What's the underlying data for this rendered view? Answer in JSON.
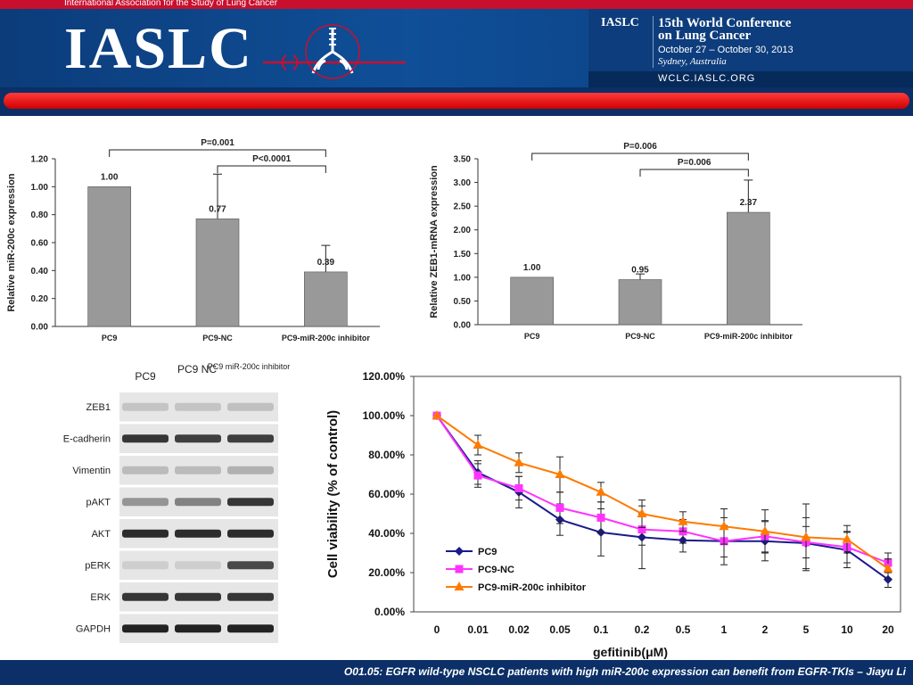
{
  "header": {
    "top_strip": "International Association for the Study of Lung Cancer",
    "logo": "IASLC",
    "conf_org": "IASLC",
    "conf_title_1": "15th World Conference",
    "conf_title_2": "on Lung Cancer",
    "conf_dates": "October 27 – October 30, 2013",
    "conf_location": "Sydney, Australia",
    "conf_url": "WCLC.IASLC.ORG"
  },
  "colors": {
    "bar_fill": "#999999",
    "pc9": "#1a1a8c",
    "pc9_nc": "#ff33ff",
    "inhibitor": "#ff7a00"
  },
  "chart_data": [
    {
      "type": "bar",
      "categories": [
        "PC9",
        "PC9-NC",
        "PC9-miR-200c inhibitor"
      ],
      "values": [
        1.0,
        0.77,
        0.39
      ],
      "value_labels": [
        "1.00",
        "0.77",
        "0.39"
      ],
      "error": [
        0,
        0.32,
        0.19
      ],
      "ylabel": "Relative miR-200c expression",
      "ylim": [
        0,
        1.2
      ],
      "ticks": [
        "0.00",
        "0.20",
        "0.40",
        "0.60",
        "0.80",
        "1.00",
        "1.20"
      ],
      "annotations": [
        {
          "from": 0,
          "to": 2,
          "text": "P=0.001"
        },
        {
          "from": 1,
          "to": 2,
          "text": "P<0.0001"
        }
      ]
    },
    {
      "type": "bar",
      "categories": [
        "PC9",
        "PC9-NC",
        "PC9-miR-200c inhibitor"
      ],
      "values": [
        1.0,
        0.95,
        2.37
      ],
      "value_labels": [
        "1.00",
        "0.95",
        "2.37"
      ],
      "error": [
        0,
        0.12,
        0.68
      ],
      "ylabel": "Relative ZEB1-mRNA expression",
      "ylim": [
        0,
        3.5
      ],
      "ticks": [
        "0.00",
        "0.50",
        "1.00",
        "1.50",
        "2.00",
        "2.50",
        "3.00",
        "3.50"
      ],
      "annotations": [
        {
          "from": 0,
          "to": 2,
          "text": "P=0.006"
        },
        {
          "from": 1,
          "to": 2,
          "text": "P=0.006"
        }
      ]
    },
    {
      "type": "line",
      "x": [
        "0",
        "0.01",
        "0.02",
        "0.05",
        "0.1",
        "0.2",
        "0.5",
        "1",
        "2",
        "5",
        "10",
        "20"
      ],
      "xlabel": "gefitinib(μM)",
      "ylabel": "Cell viability (% of control)",
      "ylim": [
        0,
        120
      ],
      "ticks": [
        "0.00%",
        "20.00%",
        "40.00%",
        "60.00%",
        "80.00%",
        "100.00%",
        "120.00%"
      ],
      "legend": "bottom-left",
      "series": [
        {
          "name": "PC9",
          "marker": "diamond",
          "values": [
            100,
            71,
            61,
            47,
            40.5,
            38,
            36.5,
            36,
            36,
            35,
            31.5,
            16.5
          ],
          "error": [
            0,
            6,
            8,
            8,
            12,
            16,
            6,
            12,
            10,
            13,
            9,
            4
          ]
        },
        {
          "name": "PC9-NC",
          "marker": "square",
          "values": [
            100,
            69.5,
            63,
            53,
            48,
            42,
            41,
            36,
            38.5,
            35.5,
            33,
            25
          ],
          "error": [
            0,
            6,
            6,
            8,
            8,
            8,
            6,
            8,
            8,
            8,
            8,
            5
          ]
        },
        {
          "name": "PC9-miR-200c inhibitor",
          "marker": "triangle",
          "values": [
            100,
            85,
            76,
            70,
            61,
            50,
            46,
            43.5,
            41,
            38,
            37,
            22
          ],
          "error": [
            0,
            5,
            5,
            9,
            5,
            7,
            5,
            9,
            11,
            17,
            7,
            5
          ]
        }
      ]
    }
  ],
  "western_blot": {
    "columns": [
      "PC9",
      "PC9 NC",
      "PC9 miR-200c inhibitor"
    ],
    "rows": [
      {
        "label": "ZEB1",
        "intensity": [
          0.1,
          0.1,
          0.12
        ]
      },
      {
        "label": "E-cadherin",
        "intensity": [
          0.85,
          0.8,
          0.8
        ]
      },
      {
        "label": "Vimentin",
        "intensity": [
          0.15,
          0.15,
          0.2
        ]
      },
      {
        "label": "pAKT",
        "intensity": [
          0.35,
          0.45,
          0.85
        ]
      },
      {
        "label": "AKT",
        "intensity": [
          0.9,
          0.9,
          0.9
        ]
      },
      {
        "label": "pERK",
        "intensity": [
          0.05,
          0.05,
          0.75
        ]
      },
      {
        "label": "ERK",
        "intensity": [
          0.85,
          0.85,
          0.85
        ]
      },
      {
        "label": "GAPDH",
        "intensity": [
          0.95,
          0.95,
          0.95
        ]
      }
    ]
  },
  "footer": {
    "caption": "O01.05: EGFR wild-type NSCLC patients with high miR-200c expression can benefit from EGFR-TKIs – Jiayu Li"
  }
}
